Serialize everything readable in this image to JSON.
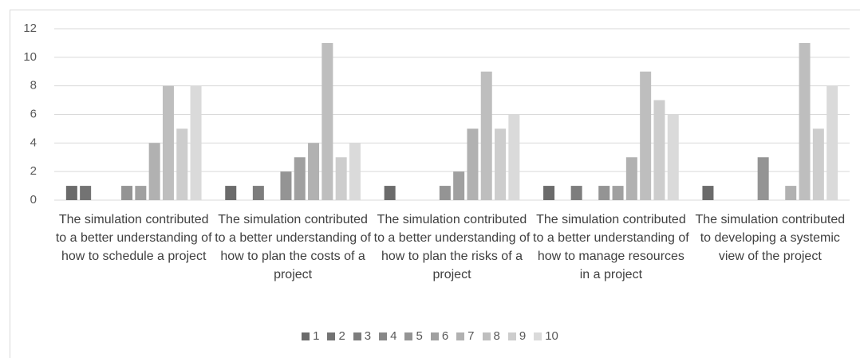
{
  "chart_data": {
    "type": "bar",
    "categories": [
      "The simulation contributed to a better understanding of how to schedule a project",
      "The simulation contributed to a better understanding of how to plan the costs of a project",
      "The simulation contributed to a better understanding of how to plan the risks of a project",
      "The simulation contributed to a better understanding of how to manage resources in a project",
      "The simulation contributed to developing a systemic view of the project"
    ],
    "series": [
      {
        "name": "1",
        "color": "#6b6b6b",
        "values": [
          1,
          1,
          1,
          1,
          1
        ]
      },
      {
        "name": "2",
        "color": "#737373",
        "values": [
          1,
          0,
          0,
          0,
          0
        ]
      },
      {
        "name": "3",
        "color": "#7d7d7d",
        "values": [
          0,
          1,
          0,
          1,
          0
        ]
      },
      {
        "name": "4",
        "color": "#888888",
        "values": [
          0,
          0,
          0,
          0,
          0
        ]
      },
      {
        "name": "5",
        "color": "#949494",
        "values": [
          1,
          2,
          1,
          1,
          3
        ]
      },
      {
        "name": "6",
        "color": "#a0a0a0",
        "values": [
          1,
          3,
          2,
          1,
          0
        ]
      },
      {
        "name": "7",
        "color": "#b1b1b1",
        "values": [
          4,
          4,
          5,
          3,
          1
        ]
      },
      {
        "name": "8",
        "color": "#bebebe",
        "values": [
          8,
          11,
          9,
          9,
          11
        ]
      },
      {
        "name": "9",
        "color": "#cdcdcd",
        "values": [
          5,
          3,
          5,
          7,
          5
        ]
      },
      {
        "name": "10",
        "color": "#dadada",
        "values": [
          8,
          4,
          6,
          6,
          8
        ]
      }
    ],
    "ylim": [
      0,
      12
    ],
    "yticks": [
      0,
      2,
      4,
      6,
      8,
      10,
      12
    ],
    "grid": true,
    "legend": "bottom"
  }
}
